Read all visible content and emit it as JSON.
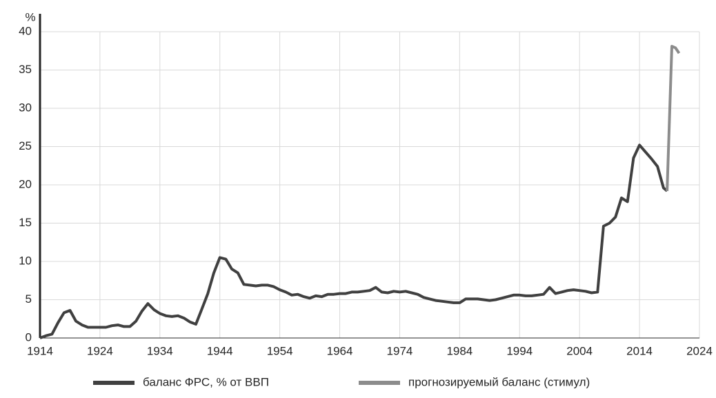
{
  "chart_data": {
    "type": "line",
    "y_label": "%",
    "xlim": [
      1914,
      2024
    ],
    "xticks": [
      1914,
      1924,
      1934,
      1944,
      1954,
      1964,
      1974,
      1984,
      1994,
      2004,
      2014,
      2024
    ],
    "ylim": [
      0,
      40
    ],
    "yticks": [
      0,
      5,
      10,
      15,
      20,
      25,
      30,
      35,
      40
    ],
    "grid": true,
    "legend": "bottom",
    "series": [
      {
        "name": "баланс ФРС, % от ВВП",
        "color": "#404040",
        "x": [
          1914,
          1915,
          1916,
          1917,
          1918,
          1919,
          1920,
          1921,
          1922,
          1923,
          1924,
          1925,
          1926,
          1927,
          1928,
          1929,
          1930,
          1931,
          1932,
          1933,
          1934,
          1935,
          1936,
          1937,
          1938,
          1939,
          1940,
          1941,
          1942,
          1943,
          1944,
          1945,
          1946,
          1947,
          1948,
          1949,
          1950,
          1951,
          1952,
          1953,
          1954,
          1955,
          1956,
          1957,
          1958,
          1959,
          1960,
          1961,
          1962,
          1963,
          1964,
          1965,
          1966,
          1967,
          1968,
          1969,
          1970,
          1971,
          1972,
          1973,
          1974,
          1975,
          1976,
          1977,
          1978,
          1979,
          1980,
          1981,
          1982,
          1983,
          1984,
          1985,
          1986,
          1987,
          1988,
          1989,
          1990,
          1991,
          1992,
          1993,
          1994,
          1995,
          1996,
          1997,
          1998,
          1999,
          2000,
          2001,
          2002,
          2003,
          2004,
          2005,
          2006,
          2007,
          2008,
          2009,
          2010,
          2011,
          2012,
          2013,
          2014,
          2015,
          2016,
          2017,
          2018,
          2018.6
        ],
        "values": [
          0,
          0.3,
          0.5,
          2,
          3.3,
          3.6,
          2.2,
          1.7,
          1.4,
          1.4,
          1.4,
          1.4,
          1.6,
          1.7,
          1.5,
          1.5,
          2.2,
          3.5,
          4.5,
          3.7,
          3.2,
          2.9,
          2.8,
          2.9,
          2.6,
          2.1,
          1.8,
          3.8,
          5.8,
          8.5,
          10.5,
          10.3,
          9,
          8.5,
          7,
          6.9,
          6.8,
          6.9,
          6.9,
          6.7,
          6.3,
          6,
          5.6,
          5.7,
          5.4,
          5.2,
          5.5,
          5.4,
          5.7,
          5.7,
          5.8,
          5.8,
          6,
          6,
          6.1,
          6.2,
          6.6,
          6,
          5.9,
          6.1,
          6,
          6.1,
          5.9,
          5.7,
          5.3,
          5.1,
          4.9,
          4.8,
          4.7,
          4.6,
          4.6,
          5.1,
          5.1,
          5.1,
          5,
          4.9,
          5,
          5.2,
          5.4,
          5.6,
          5.6,
          5.5,
          5.5,
          5.6,
          5.7,
          6.6,
          5.8,
          6,
          6.2,
          6.3,
          6.2,
          6.1,
          5.9,
          6,
          14.6,
          15,
          15.8,
          18.3,
          17.8,
          23.5,
          25.2,
          24.3,
          23.4,
          22.4,
          19.6,
          19.2
        ]
      },
      {
        "name": "прогнозируемый баланс (стимул)",
        "color": "#8c8c8c",
        "x": [
          2018.6,
          2019.4,
          2020,
          2020.6
        ],
        "values": [
          19.2,
          38.1,
          37.9,
          37.2
        ]
      }
    ]
  }
}
